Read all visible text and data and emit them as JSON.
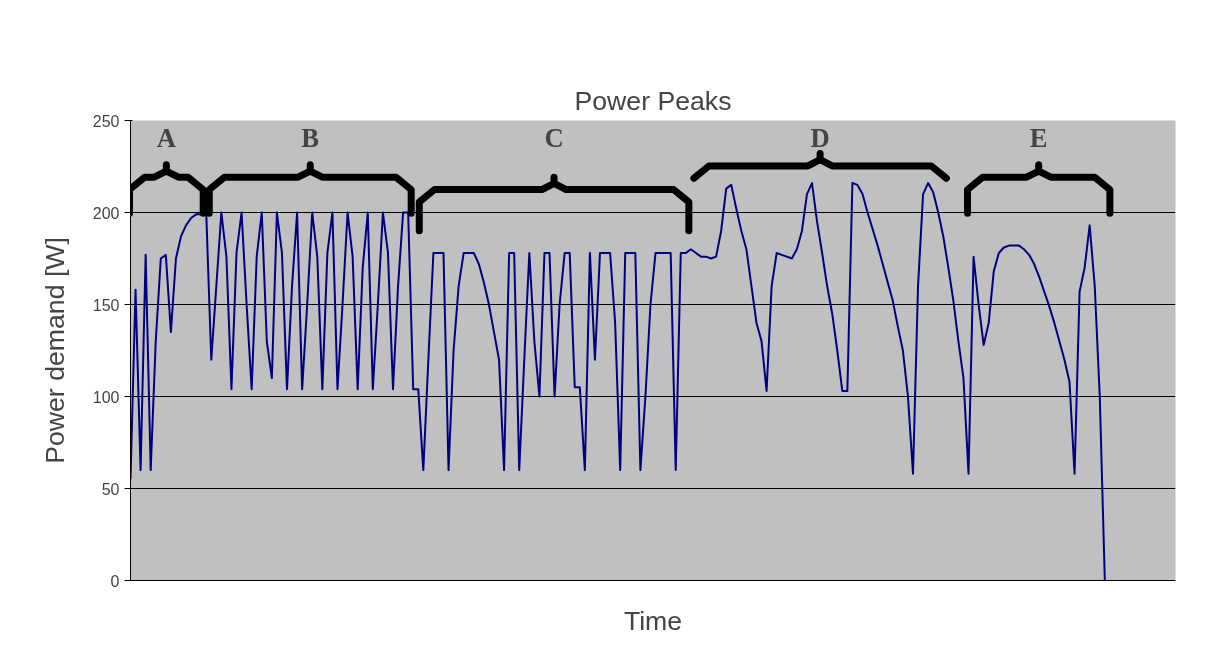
{
  "chart_data": {
    "type": "line",
    "title": "Power Peaks",
    "xlabel": "Time",
    "ylabel": "Power demand [W]",
    "categories": [
      null,
      null,
      null,
      null,
      null,
      null,
      null,
      null,
      null,
      null,
      null,
      null,
      null,
      null,
      null,
      null,
      null,
      null,
      null,
      null,
      null,
      null,
      null,
      null,
      null,
      null,
      null,
      null,
      null,
      null,
      null,
      null,
      null,
      null,
      null,
      null,
      null,
      null,
      null,
      null,
      null,
      null,
      null,
      null,
      null,
      null,
      null,
      null,
      null,
      null,
      null,
      null,
      null,
      null,
      null,
      null,
      null,
      null,
      null,
      null,
      null,
      null,
      null,
      null,
      null,
      null,
      null,
      null,
      null,
      null,
      null,
      null,
      null,
      null,
      null,
      null,
      null,
      null,
      null,
      null,
      null,
      null,
      null,
      null,
      null,
      null,
      null,
      null,
      null,
      null,
      null,
      null,
      null,
      null,
      null,
      null,
      null,
      null,
      null,
      null,
      null,
      null,
      null,
      null,
      null,
      null,
      null,
      null,
      null,
      null,
      null,
      null,
      null,
      null,
      null,
      null,
      null,
      null,
      null,
      null,
      null,
      null,
      null,
      null,
      null,
      null,
      null,
      null,
      null,
      null,
      null,
      null,
      null,
      null,
      null,
      null,
      null,
      null,
      null,
      null,
      null,
      null,
      null,
      null,
      null,
      null,
      null,
      null,
      null,
      null,
      null,
      null,
      null,
      null,
      null,
      null,
      null,
      null,
      null,
      null,
      null,
      null,
      null,
      null,
      null,
      null,
      null,
      null,
      null,
      null,
      null,
      null,
      null,
      null,
      null,
      null,
      null,
      null,
      null,
      null,
      null,
      null,
      null,
      null,
      null,
      null,
      null,
      null,
      null,
      null,
      null,
      null,
      null,
      null,
      null,
      null,
      null,
      null,
      null,
      null,
      null,
      null,
      null,
      null,
      null,
      null,
      null,
      null
    ],
    "series": [
      {
        "color": "#000080",
        "values": [
          55,
          158,
          60,
          177,
          60,
          130,
          175,
          177,
          135,
          175,
          187,
          193,
          197,
          199,
          199,
          200,
          120,
          160,
          200,
          176,
          104,
          178,
          200,
          150,
          104,
          176,
          200,
          130,
          110,
          200,
          178,
          104,
          160,
          200,
          104,
          150,
          200,
          176,
          104,
          178,
          200,
          104,
          150,
          200,
          176,
          104,
          170,
          200,
          104,
          150,
          200,
          178,
          104,
          160,
          200,
          200,
          104,
          104,
          60,
          120,
          178,
          178,
          178,
          60,
          125,
          160,
          178,
          178,
          178,
          172,
          162,
          150,
          135,
          120,
          60,
          178,
          178,
          60,
          120,
          178,
          130,
          100,
          178,
          178,
          100,
          150,
          178,
          178,
          105,
          105,
          60,
          178,
          120,
          178,
          178,
          178,
          140,
          60,
          178,
          178,
          178,
          60,
          100,
          150,
          178,
          178,
          178,
          178,
          60,
          178,
          178,
          180,
          178,
          176,
          176,
          175,
          176,
          190,
          213,
          215,
          202,
          190,
          180,
          160,
          140,
          130,
          103,
          160,
          178,
          177,
          176,
          175,
          180,
          190,
          210,
          216,
          195,
          178,
          160,
          145,
          125,
          103,
          103,
          216,
          215,
          210,
          200,
          191,
          182,
          172,
          162,
          152,
          138,
          125,
          100,
          58,
          160,
          210,
          216,
          211,
          200,
          187,
          170,
          152,
          130,
          110,
          58,
          176,
          150,
          128,
          140,
          168,
          178,
          181,
          182,
          182,
          182,
          180,
          177,
          172,
          165,
          157,
          149,
          140,
          130,
          120,
          108,
          58,
          157,
          170,
          193,
          160,
          100,
          0,
          null,
          null,
          null,
          null,
          null,
          null,
          null,
          null,
          null,
          null,
          null,
          null,
          null,
          null
        ]
      }
    ],
    "ylim": [
      0,
      250
    ],
    "yticks": [
      0,
      50,
      100,
      150,
      200,
      250
    ],
    "grid": "y",
    "tick_labels": "y",
    "marker": "none",
    "line_style": "solid",
    "annotations": [
      "A",
      "B",
      "C",
      "D",
      "E"
    ]
  }
}
